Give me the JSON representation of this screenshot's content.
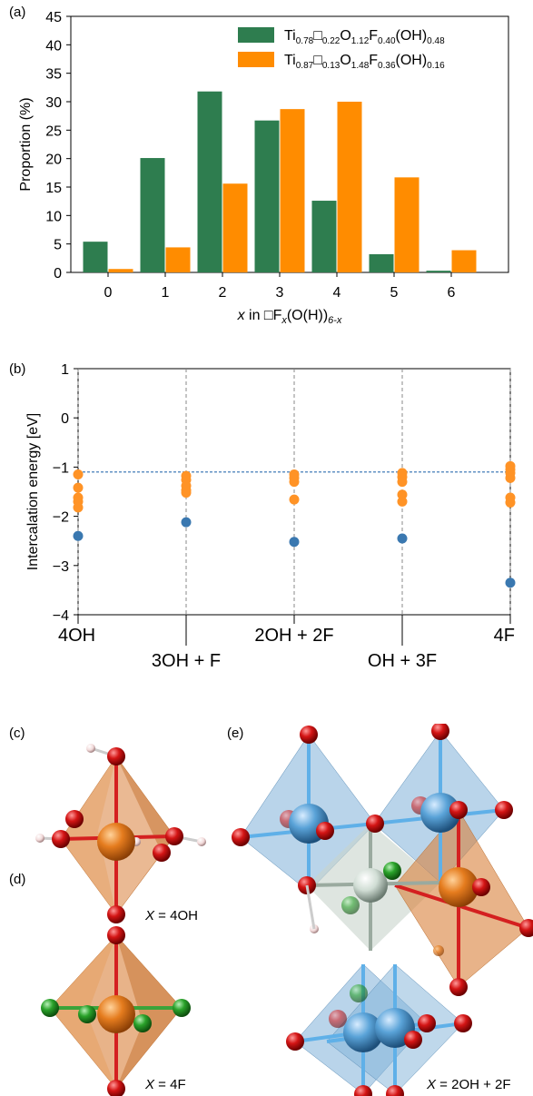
{
  "panels": {
    "a": "(a)",
    "b": "(b)",
    "c": "(c)",
    "d": "(d)",
    "e": "(e)"
  },
  "chart_data": [
    {
      "type": "bar",
      "panel": "(a)",
      "ylabel": "Proportion (%)",
      "xlabel": {
        "pre": "x",
        "mid": " in □F",
        "sub1": "x",
        "mid2": "(O(H))",
        "sub2": "6-x"
      },
      "ylim": [
        0,
        45
      ],
      "yticks": [
        0,
        5,
        10,
        15,
        20,
        25,
        30,
        35,
        40,
        45
      ],
      "categories": [
        "0",
        "1",
        "2",
        "3",
        "4",
        "5",
        "6"
      ],
      "legend_position": "top-right",
      "series": [
        {
          "name": "Ti0.78□0.22O1.12F0.40(OH)0.48",
          "legend_parts": [
            [
              "Ti",
              ""
            ],
            [
              "0.78",
              "sub"
            ],
            [
              "□",
              ""
            ],
            [
              "0.22",
              "sub"
            ],
            [
              "O",
              ""
            ],
            [
              "1.12",
              "sub"
            ],
            [
              "F",
              ""
            ],
            [
              "0.40",
              "sub"
            ],
            [
              "(OH)",
              ""
            ],
            [
              "0.48",
              "sub"
            ]
          ],
          "color": "#2e7d4f",
          "values": [
            5.4,
            20.1,
            31.8,
            26.7,
            12.6,
            3.2,
            0.3
          ]
        },
        {
          "name": "Ti0.87□0.13O1.48F0.36(OH)0.16",
          "legend_parts": [
            [
              "Ti",
              ""
            ],
            [
              "0.87",
              "sub"
            ],
            [
              "□",
              ""
            ],
            [
              "0.13",
              "sub"
            ],
            [
              "O",
              ""
            ],
            [
              "1.48",
              "sub"
            ],
            [
              "F",
              ""
            ],
            [
              "0.36",
              "sub"
            ],
            [
              "(OH)",
              ""
            ],
            [
              "0.16",
              "sub"
            ]
          ],
          "color": "#ff8c00",
          "values": [
            0.6,
            4.4,
            15.6,
            28.7,
            30.0,
            16.7,
            3.9
          ]
        }
      ]
    },
    {
      "type": "scatter",
      "panel": "(b)",
      "ylabel": "Intercalation energy [eV]",
      "ylim": [
        -4,
        1
      ],
      "yticks": [
        -4,
        -3,
        -2,
        -1,
        0,
        1
      ],
      "categories": [
        "4OH",
        "3OH + F",
        "2OH + 2F",
        "OH + 3F",
        "4F"
      ],
      "reference_line": -1.1,
      "series": [
        {
          "color": "#ff9326",
          "points": [
            [
              0,
              -1.15
            ],
            [
              0,
              -1.42
            ],
            [
              0,
              -1.62
            ],
            [
              0,
              -1.7
            ],
            [
              0,
              -1.82
            ],
            [
              1,
              -1.18
            ],
            [
              1,
              -1.26
            ],
            [
              1,
              -1.38
            ],
            [
              1,
              -1.47
            ],
            [
              1,
              -1.52
            ],
            [
              2,
              -1.15
            ],
            [
              2,
              -1.22
            ],
            [
              2,
              -1.3
            ],
            [
              2,
              -1.66
            ],
            [
              3,
              -1.12
            ],
            [
              3,
              -1.2
            ],
            [
              3,
              -1.3
            ],
            [
              3,
              -1.56
            ],
            [
              3,
              -1.7
            ],
            [
              4,
              -0.98
            ],
            [
              4,
              -1.05
            ],
            [
              4,
              -1.12
            ],
            [
              4,
              -1.22
            ],
            [
              4,
              -1.62
            ],
            [
              4,
              -1.72
            ]
          ]
        },
        {
          "color": "#3a78b0",
          "points": [
            [
              0,
              -2.4
            ],
            [
              1,
              -2.12
            ],
            [
              2,
              -2.52
            ],
            [
              3,
              -2.45
            ],
            [
              4,
              -3.35
            ]
          ]
        }
      ]
    }
  ],
  "structures": {
    "c": {
      "caption_var": "X",
      "caption_val": " = 4OH"
    },
    "d": {
      "caption_var": "X",
      "caption_val": " = 4F"
    },
    "e": {
      "caption_var": "X",
      "caption_val": " = 2OH + 2F"
    },
    "colors": {
      "titanium": "#e57c1e",
      "oxygen": "#d41515",
      "fluorine": "#2aa22a",
      "hydrogen": "#f2dada",
      "vacancy_site": "#5aa3d8",
      "bond_blue": "#5fb0e8",
      "bond_red": "#d42020",
      "octa_orange": "#d9803a",
      "octa_blue": "#7fb1d8"
    }
  }
}
